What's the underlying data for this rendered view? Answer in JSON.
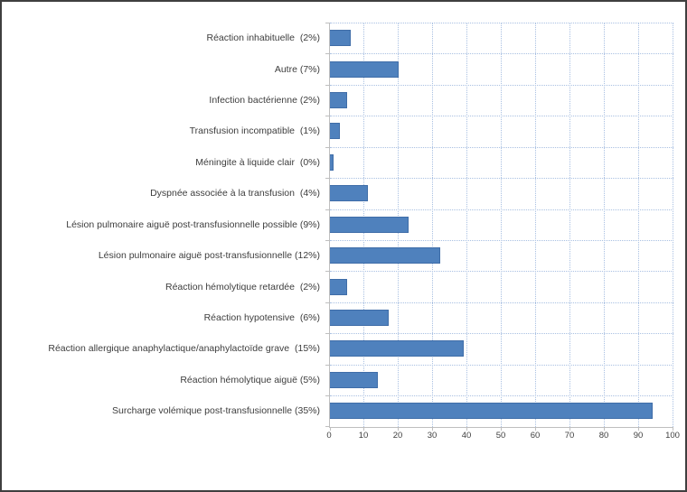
{
  "chart_data": {
    "type": "bar",
    "orientation": "horizontal",
    "title": "",
    "xlabel": "",
    "ylabel": "",
    "categories": [
      "Réaction inhabituelle  (2%)",
      "Autre (7%)",
      "Infection bactérienne (2%)",
      "Transfusion incompatible  (1%)",
      "Méningite à liquide clair  (0%)",
      "Dyspnée associée à la transfusion  (4%)",
      "Lésion pulmonaire aiguë post-transfusionnelle possible (9%)",
      "Lésion pulmonaire aiguë post-transfusionnelle (12%)",
      "Réaction hémolytique retardée  (2%)",
      "Réaction hypotensive  (6%)",
      "Réaction allergique anaphylactique/anaphylactoïde grave  (15%)",
      "Réaction hémolytique aiguë (5%)",
      "Surcharge volémique post-transfusionnelle (35%)"
    ],
    "values": [
      6,
      20,
      5,
      3,
      1,
      11,
      23,
      32,
      5,
      17,
      39,
      14,
      94
    ],
    "xlim": [
      0,
      100
    ],
    "x_ticks": [
      0,
      10,
      20,
      30,
      40,
      50,
      60,
      70,
      80,
      90,
      100
    ],
    "x_tick_labels": [
      "0",
      "10",
      "20",
      "30",
      "40",
      "50",
      "60",
      "70",
      "80",
      "90",
      "100"
    ],
    "grid": "dotted vertical and horizontal gridlines",
    "legend": "none",
    "colors": {
      "bar_fill": "#4f81bd",
      "bar_border": "#3f6da8",
      "gridline": "#a9c0e2",
      "axis": "#bfbfbf",
      "category_label": "#3d3d3d",
      "tick_label": "#404040",
      "frame_border": "#3f3f3f",
      "background": "#ffffff"
    }
  }
}
